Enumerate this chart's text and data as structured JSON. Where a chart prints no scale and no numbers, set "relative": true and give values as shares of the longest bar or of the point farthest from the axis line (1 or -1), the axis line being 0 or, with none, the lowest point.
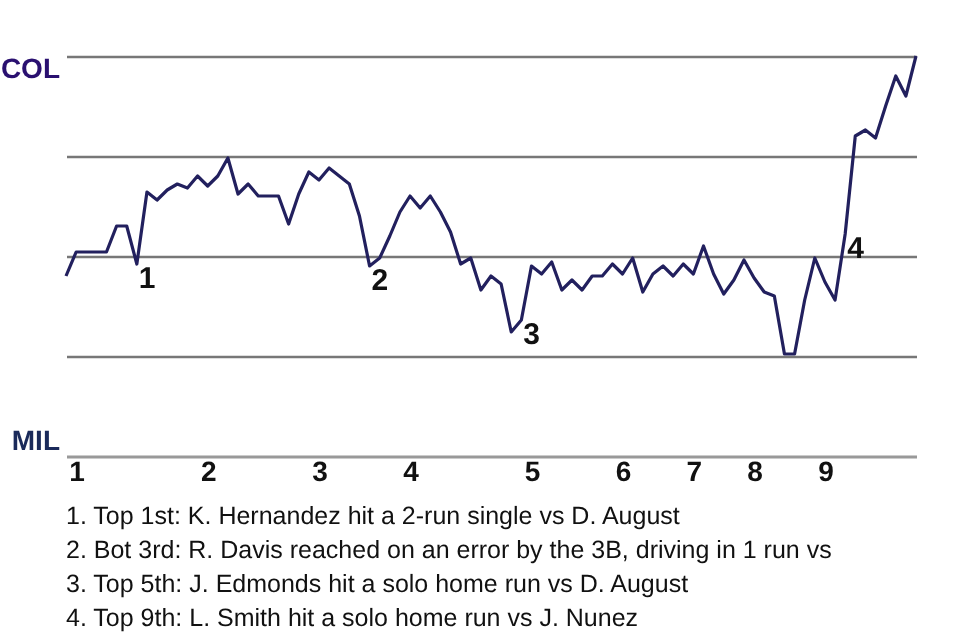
{
  "chart_data": {
    "type": "line",
    "relative": true,
    "categories": [
      null,
      "1",
      null,
      null,
      null,
      null,
      null,
      null,
      null,
      null,
      null,
      null,
      null,
      null,
      "2",
      null,
      null,
      null,
      null,
      null,
      null,
      null,
      null,
      null,
      null,
      "3",
      null,
      null,
      null,
      null,
      null,
      null,
      null,
      null,
      "4",
      null,
      null,
      null,
      null,
      null,
      null,
      null,
      null,
      null,
      null,
      null,
      "5",
      null,
      null,
      null,
      null,
      null,
      null,
      null,
      null,
      "6",
      null,
      null,
      null,
      null,
      null,
      null,
      "7",
      null,
      null,
      null,
      null,
      null,
      "8",
      null,
      null,
      null,
      null,
      null,
      null,
      "9",
      null,
      null,
      null,
      null,
      null,
      null,
      null,
      null,
      null
    ],
    "series": [
      {
        "color": "#22205e",
        "values": [
          0.45,
          0.51,
          0.51,
          0.51,
          0.51,
          0.575,
          0.575,
          0.48,
          0.66,
          0.64,
          0.665,
          0.68,
          0.67,
          0.7,
          0.675,
          0.7,
          0.745,
          0.655,
          0.68,
          0.65,
          0.65,
          0.65,
          0.58,
          0.655,
          0.71,
          0.69,
          0.72,
          0.7,
          0.68,
          0.6,
          0.475,
          0.495,
          0.55,
          0.61,
          0.65,
          0.62,
          0.65,
          0.61,
          0.56,
          0.48,
          0.495,
          0.415,
          0.45,
          0.43,
          0.31,
          0.34,
          0.475,
          0.455,
          0.485,
          0.415,
          0.44,
          0.415,
          0.45,
          0.45,
          0.48,
          0.455,
          0.495,
          0.41,
          0.455,
          0.475,
          0.45,
          0.48,
          0.455,
          0.525,
          0.455,
          0.405,
          0.44,
          0.49,
          0.445,
          0.41,
          0.4,
          0.255,
          0.255,
          0.39,
          0.495,
          0.435,
          0.39,
          0.555,
          0.8,
          0.815,
          0.795,
          0.875,
          0.95,
          0.9,
          1.0
        ]
      }
    ],
    "grid": "y",
    "annotations": [
      "COL",
      "MIL",
      {
        "text": "1",
        "y": 0.48
      },
      {
        "text": "2",
        "y": 0.475
      },
      {
        "text": "3",
        "y": 0.34
      },
      {
        "text": "4",
        "y": 0.555
      },
      "1. Top 1st: K. Hernandez hit a 2-run single vs D. August",
      "2. Bot 3rd: R. Davis reached on an error by the 3B, driving in 1 run vs",
      "3. Top 5th: J. Edmonds hit a solo home run vs D. August",
      "4. Top 9th: L. Smith hit a solo home run vs J. Nunez"
    ]
  }
}
